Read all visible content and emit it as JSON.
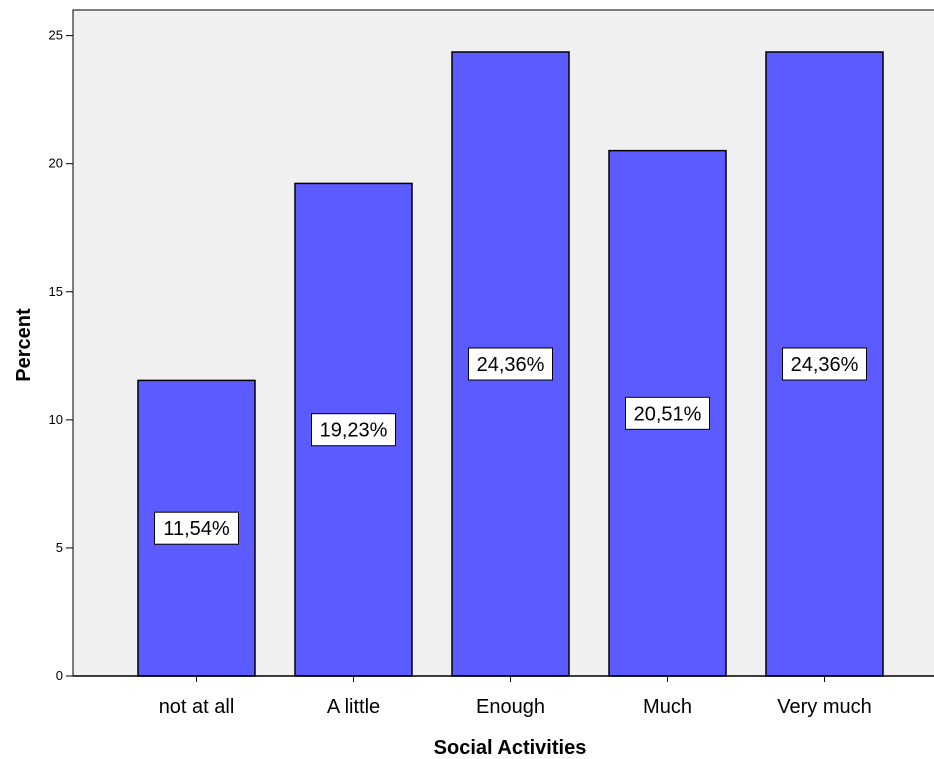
{
  "chart_data": {
    "type": "bar",
    "categories": [
      "not at all",
      "A little",
      "Enough",
      "Much",
      "Very much"
    ],
    "values": [
      11.54,
      19.23,
      24.36,
      20.51,
      24.36
    ],
    "data_labels": [
      "11,54%",
      "19,23%",
      "24,36%",
      "20,51%",
      "24,36%"
    ],
    "xlabel": "Social Activities",
    "ylabel": "Percent",
    "ylim": [
      0,
      26
    ],
    "yticks": [
      0,
      5,
      10,
      15,
      20,
      25
    ],
    "ytick_labels": [
      "0",
      "5",
      "10",
      "15",
      "20",
      "25"
    ],
    "grid": false,
    "bar_color": "#5b5bff",
    "plot_background": "#f0f0f0"
  }
}
